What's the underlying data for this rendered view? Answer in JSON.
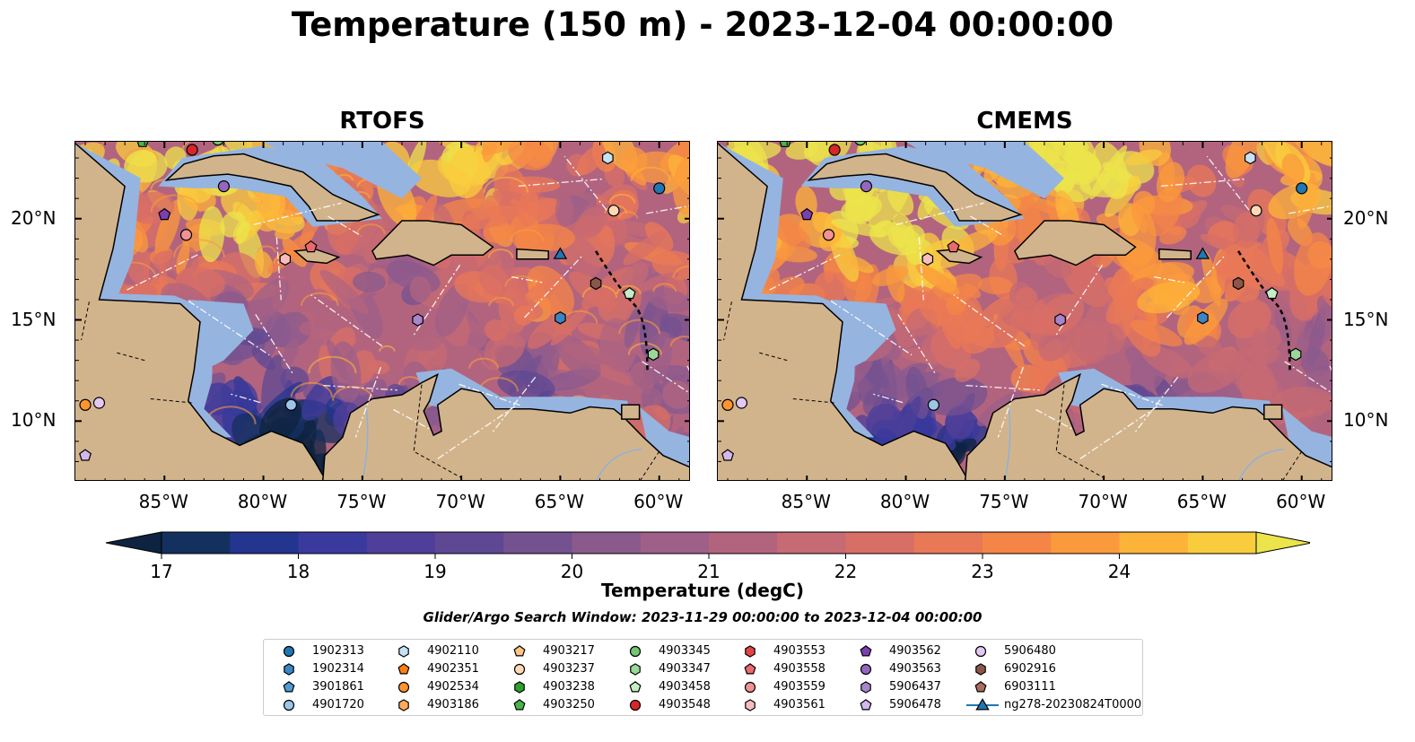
{
  "title": "Temperature (150 m) - 2023-12-04 00:00:00",
  "panels": [
    {
      "title": "RTOFS",
      "name": "rtofs"
    },
    {
      "title": "CMEMS",
      "name": "cmems"
    }
  ],
  "axes": {
    "lon_ticks": [
      "85°W",
      "80°W",
      "75°W",
      "70°W",
      "65°W",
      "60°W"
    ],
    "lat_ticks": [
      "20°N",
      "15°N",
      "10°N"
    ]
  },
  "colorbar": {
    "label": "Temperature (degC)",
    "ticks": [
      "17",
      "18",
      "19",
      "20",
      "21",
      "22",
      "23",
      "24"
    ],
    "min": 16.5,
    "max": 24.5,
    "step": 0.5,
    "colors": [
      "#0d2340",
      "#14305f",
      "#23358f",
      "#3a3a9e",
      "#4f3f9a",
      "#5f4893",
      "#745290",
      "#8a5a8d",
      "#9e5f88",
      "#b2647f",
      "#c66a73",
      "#d86f66",
      "#e97857",
      "#f48547",
      "#fb9a3c",
      "#fdb33a",
      "#f9cc3d",
      "#ece44b"
    ]
  },
  "search_window": "Glider/Argo Search Window: 2023-11-29 00:00:00 to 2023-12-04 00:00:00",
  "legend": [
    {
      "label": "1902313",
      "marker": "circle",
      "color": "#1f77b4"
    },
    {
      "label": "1902314",
      "marker": "hexagon",
      "color": "#3a86c4"
    },
    {
      "label": "3901861",
      "marker": "pentagon",
      "color": "#4f9bd4"
    },
    {
      "label": "4901720",
      "marker": "circle",
      "color": "#9cc5e8"
    },
    {
      "label": "4902110",
      "marker": "hexagon",
      "color": "#c6e2f5"
    },
    {
      "label": "4902351",
      "marker": "pentagon",
      "color": "#ff7f0e"
    },
    {
      "label": "4902534",
      "marker": "circle",
      "color": "#ff9430"
    },
    {
      "label": "4903186",
      "marker": "hexagon",
      "color": "#ffab5c"
    },
    {
      "label": "4903217",
      "marker": "pentagon",
      "color": "#ffc388"
    },
    {
      "label": "4903237",
      "marker": "circle",
      "color": "#ffd9b5"
    },
    {
      "label": "4903238",
      "marker": "hexagon",
      "color": "#2ca02c"
    },
    {
      "label": "4903250",
      "marker": "pentagon",
      "color": "#4bb34b"
    },
    {
      "label": "4903345",
      "marker": "circle",
      "color": "#72c672"
    },
    {
      "label": "4903347",
      "marker": "hexagon",
      "color": "#9ad89a"
    },
    {
      "label": "4903458",
      "marker": "pentagon",
      "color": "#c4edc4"
    },
    {
      "label": "4903548",
      "marker": "circle",
      "color": "#d62728"
    },
    {
      "label": "4903553",
      "marker": "hexagon",
      "color": "#e04446"
    },
    {
      "label": "4903558",
      "marker": "pentagon",
      "color": "#ea6a6b"
    },
    {
      "label": "4903559",
      "marker": "circle",
      "color": "#f29293"
    },
    {
      "label": "4903561",
      "marker": "hexagon",
      "color": "#f8bdbd"
    },
    {
      "label": "4903562",
      "marker": "pentagon",
      "color": "#7a3fb0"
    },
    {
      "label": "4903563",
      "marker": "circle",
      "color": "#9467bd"
    },
    {
      "label": "5906437",
      "marker": "hexagon",
      "color": "#a885cc"
    },
    {
      "label": "5906478",
      "marker": "pentagon",
      "color": "#d2b9ea"
    },
    {
      "label": "5906480",
      "marker": "circle",
      "color": "#e2c8f2"
    },
    {
      "label": "6902916",
      "marker": "hexagon",
      "color": "#8c564b"
    },
    {
      "label": "6903111",
      "marker": "pentagon",
      "color": "#a86d5e"
    },
    {
      "label": "ng278-20230824T0000",
      "marker": "triangle-line",
      "color": "#1f77b4"
    }
  ],
  "map_colors": {
    "land": "#d2b48c",
    "shallow": "#96b4e0",
    "deep_cold": "#0d2340"
  },
  "floats": [
    {
      "id": "4903559",
      "lon": -83.9,
      "lat": 19.2
    },
    {
      "id": "4903562",
      "lon": -85.0,
      "lat": 20.2
    },
    {
      "id": "4903563",
      "lon": -82.0,
      "lat": 21.6
    },
    {
      "id": "4903548",
      "lon": -83.6,
      "lat": 23.4
    },
    {
      "id": "4903561",
      "lon": -78.9,
      "lat": 18.0
    },
    {
      "id": "4903558",
      "lon": -77.6,
      "lat": 18.6
    },
    {
      "id": "4903345",
      "lon": -82.3,
      "lat": 23.9
    },
    {
      "id": "4903250",
      "lon": -86.1,
      "lat": 23.8
    },
    {
      "id": "4902110",
      "lon": -62.6,
      "lat": 23.0
    },
    {
      "id": "1902313",
      "lon": -60.0,
      "lat": 21.5
    },
    {
      "id": "4903237",
      "lon": -62.3,
      "lat": 20.4
    },
    {
      "id": "6902916",
      "lon": -63.2,
      "lat": 16.8
    },
    {
      "id": "1902314",
      "lon": -65.0,
      "lat": 15.1
    },
    {
      "id": "5906437",
      "lon": -72.2,
      "lat": 15.0
    },
    {
      "id": "4903347",
      "lon": -60.3,
      "lat": 13.3
    },
    {
      "id": "4901720",
      "lon": -78.6,
      "lat": 10.8
    },
    {
      "id": "5906480",
      "lon": -88.3,
      "lat": 10.9
    },
    {
      "id": "4902534",
      "lon": -89.0,
      "lat": 10.8
    },
    {
      "id": "5906478",
      "lon": -89.0,
      "lat": 8.3
    },
    {
      "id": "4903458",
      "lon": -61.5,
      "lat": 16.3
    }
  ],
  "glider": {
    "id": "ng278-20230824T0000",
    "lon": -65.0,
    "lat": 18.2
  }
}
